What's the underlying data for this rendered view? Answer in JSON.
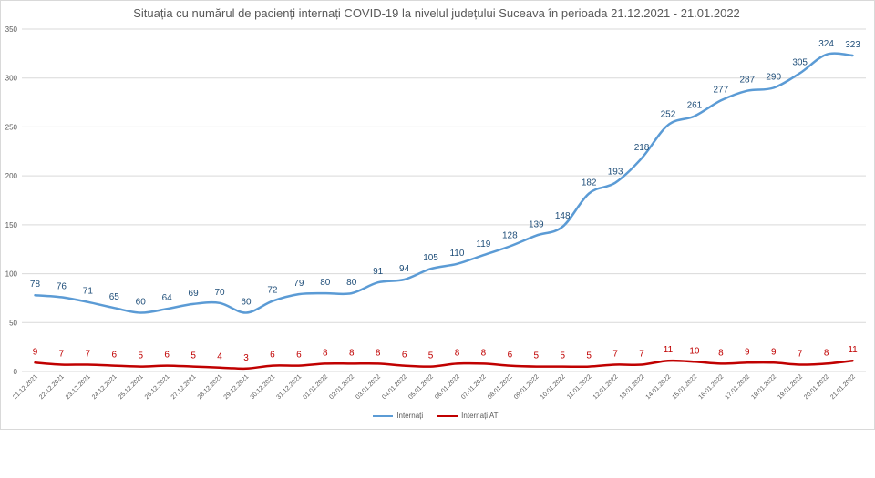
{
  "chart_data": {
    "type": "line",
    "title": "Situația cu numărul de pacienți internați COVID-19 la nivelul județului Suceava în perioada 21.12.2021 - 21.01.2022",
    "xlabel": "",
    "ylabel": "",
    "ylim": [
      0,
      350
    ],
    "yticks": [
      "0",
      "50",
      "100",
      "150",
      "200",
      "250",
      "300",
      "350"
    ],
    "grid": true,
    "legend_position": "bottom",
    "categories": [
      "21.12.2021",
      "22.12.2021",
      "23.12.2021",
      "24.12.2021",
      "25.12.2021",
      "26.12.2021",
      "27.12.2021",
      "28.12.2021",
      "29.12.2021",
      "30.12.2021",
      "31.12.2021",
      "01.01.2022",
      "02.01.2022",
      "03.01.2022",
      "04.01.2022",
      "05.01.2022",
      "06.01.2022",
      "07.01.2022",
      "08.01.2022",
      "09.01.2022",
      "10.01.2022",
      "11.01.2022",
      "12.01.2022",
      "13.01.2022",
      "14.01.2022",
      "15.01.2022",
      "16.01.2022",
      "17.01.2022",
      "18.01.2022",
      "19.01.2022",
      "20.01.2022",
      "21.01.2022"
    ],
    "series": [
      {
        "name": "Internați",
        "color": "#5b9bd5",
        "label_color": "#1f4e79",
        "values": [
          78,
          76,
          71,
          65,
          60,
          64,
          69,
          70,
          60,
          72,
          79,
          80,
          80,
          91,
          94,
          105,
          110,
          119,
          128,
          139,
          148,
          182,
          193,
          218,
          252,
          261,
          277,
          287,
          290,
          305,
          324,
          323
        ]
      },
      {
        "name": "Internați ATI",
        "color": "#c00000",
        "label_color": "#c00000",
        "values": [
          9,
          7,
          7,
          6,
          5,
          6,
          5,
          4,
          3,
          6,
          6,
          8,
          8,
          8,
          6,
          5,
          8,
          8,
          6,
          5,
          5,
          5,
          7,
          7,
          11,
          10,
          8,
          9,
          9,
          7,
          8,
          11
        ]
      }
    ]
  }
}
